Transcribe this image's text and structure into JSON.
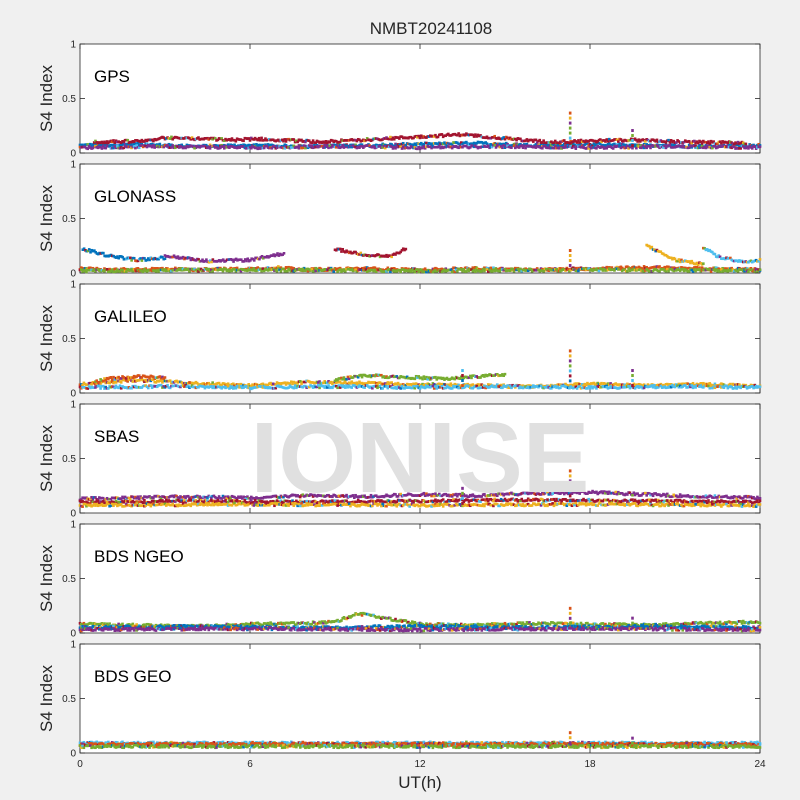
{
  "chart_data": {
    "type": "scatter",
    "title": "NMBT20241108",
    "xlabel": "UT(h)",
    "ylabel": "S4 Index",
    "xlim": [
      0,
      24
    ],
    "ylim": [
      0,
      1
    ],
    "x_ticks": [
      "0",
      "6",
      "12",
      "18",
      "24"
    ],
    "y_ticks": [
      "0",
      "0.5",
      "1"
    ],
    "watermark": "IONISE",
    "series_colors": [
      "#0072bd",
      "#d95319",
      "#edb120",
      "#7e2f8e",
      "#77ac30",
      "#4dbeee",
      "#a2142f"
    ],
    "panels": [
      {
        "label": "GPS",
        "tracks": [
          {
            "x": [
              0,
              2,
              4,
              6,
              8,
              10,
              12,
              14,
              16,
              18,
              20,
              22,
              24
            ],
            "y": [
              0.07,
              0.08,
              0.06,
              0.07,
              0.06,
              0.07,
              0.08,
              0.09,
              0.07,
              0.08,
              0.07,
              0.06,
              0.07
            ]
          },
          {
            "x": [
              0,
              3,
              6,
              9,
              12,
              15,
              18,
              21,
              24
            ],
            "y": [
              0.05,
              0.06,
              0.05,
              0.06,
              0.05,
              0.06,
              0.05,
              0.06,
              0.05
            ]
          },
          {
            "x": [
              0.5,
              2.5,
              2.8,
              5.5,
              6.2,
              8.5,
              13.5,
              16.5,
              19.5,
              21.5,
              23.5
            ],
            "y": [
              0.1,
              0.11,
              0.14,
              0.12,
              0.13,
              0.1,
              0.17,
              0.1,
              0.12,
              0.1,
              0.09
            ]
          }
        ],
        "spikes": [
          {
            "x": 17.3,
            "y": 0.38
          },
          {
            "x": 19.5,
            "y": 0.22
          }
        ]
      },
      {
        "label": "GLONASS",
        "tracks": [
          {
            "x": [
              0,
              1,
              2,
              3,
              4,
              6,
              7,
              8,
              10,
              12,
              14,
              16,
              18,
              20,
              22,
              24
            ],
            "y": [
              0.04,
              0.03,
              0.03,
              0.04,
              0.03,
              0.04,
              0.05,
              0.03,
              0.04,
              0.03,
              0.04,
              0.03,
              0.04,
              0.05,
              0.04,
              0.03
            ]
          },
          {
            "x": [
              0,
              6,
              12,
              18,
              24
            ],
            "y": [
              0.02,
              0.03,
              0.02,
              0.03,
              0.02
            ]
          }
        ],
        "arcs": [
          {
            "x": [
              0.1,
              1.0,
              2.0,
              3.0
            ],
            "y": [
              0.22,
              0.16,
              0.12,
              0.14
            ]
          },
          {
            "x": [
              3.0,
              4.5,
              6.0,
              7.2
            ],
            "y": [
              0.16,
              0.11,
              0.12,
              0.18
            ]
          },
          {
            "x": [
              9.0,
              10.0,
              11.0,
              11.5
            ],
            "y": [
              0.22,
              0.17,
              0.15,
              0.23
            ]
          },
          {
            "x": [
              20.0,
              21.0,
              22.0
            ],
            "y": [
              0.25,
              0.12,
              0.08
            ]
          },
          {
            "x": [
              22.0,
              22.5,
              23.5,
              24.0
            ],
            "y": [
              0.24,
              0.15,
              0.1,
              0.12
            ]
          }
        ],
        "spikes": [
          {
            "x": 17.3,
            "y": 0.22
          }
        ]
      },
      {
        "label": "GALILEO",
        "tracks": [
          {
            "x": [
              0,
              2,
              4,
              6,
              8,
              10,
              12,
              14,
              16,
              18,
              20,
              22,
              24
            ],
            "y": [
              0.08,
              0.12,
              0.09,
              0.07,
              0.1,
              0.09,
              0.08,
              0.07,
              0.06,
              0.08,
              0.07,
              0.08,
              0.06
            ]
          },
          {
            "x": [
              0,
              3,
              6,
              9,
              12,
              15,
              18,
              21,
              24
            ],
            "y": [
              0.05,
              0.06,
              0.05,
              0.06,
              0.05,
              0.06,
              0.05,
              0.06,
              0.05
            ]
          },
          {
            "x": [
              0.5,
              1.0,
              2.0,
              3.0
            ],
            "y": [
              0.1,
              0.13,
              0.15,
              0.14
            ]
          },
          {
            "x": [
              9.0,
              10.0,
              13.0,
              14.0,
              15.0
            ],
            "y": [
              0.12,
              0.16,
              0.13,
              0.15,
              0.17
            ]
          }
        ],
        "spikes": [
          {
            "x": 17.3,
            "y": 0.4
          },
          {
            "x": 19.5,
            "y": 0.22
          },
          {
            "x": 13.5,
            "y": 0.22
          }
        ]
      },
      {
        "label": "SBAS",
        "tracks": [
          {
            "x": [
              0,
              2,
              4,
              6,
              8,
              10,
              12,
              14,
              16,
              18,
              20,
              22,
              24
            ],
            "y": [
              0.13,
              0.14,
              0.15,
              0.14,
              0.16,
              0.15,
              0.17,
              0.16,
              0.18,
              0.19,
              0.17,
              0.15,
              0.14
            ]
          },
          {
            "x": [
              0,
              4,
              8,
              12,
              16,
              20,
              24
            ],
            "y": [
              0.1,
              0.11,
              0.1,
              0.11,
              0.12,
              0.11,
              0.1
            ]
          },
          {
            "x": [
              0,
              6,
              12,
              18,
              24
            ],
            "y": [
              0.07,
              0.08,
              0.07,
              0.08,
              0.07
            ]
          }
        ],
        "spikes": [
          {
            "x": 17.3,
            "y": 0.4
          },
          {
            "x": 13.5,
            "y": 0.24
          }
        ]
      },
      {
        "label": "BDS NGEO",
        "tracks": [
          {
            "x": [
              0,
              2,
              4,
              6,
              8,
              9,
              9.8,
              12,
              14,
              16,
              18,
              20,
              22,
              24
            ],
            "y": [
              0.08,
              0.07,
              0.06,
              0.08,
              0.09,
              0.1,
              0.18,
              0.08,
              0.07,
              0.09,
              0.08,
              0.07,
              0.09,
              0.1
            ]
          },
          {
            "x": [
              0,
              4,
              8,
              12,
              16,
              20,
              24
            ],
            "y": [
              0.05,
              0.06,
              0.05,
              0.06,
              0.05,
              0.06,
              0.05
            ]
          },
          {
            "x": [
              0,
              6,
              12,
              18,
              24
            ],
            "y": [
              0.03,
              0.04,
              0.03,
              0.04,
              0.03
            ]
          }
        ],
        "spikes": [
          {
            "x": 17.3,
            "y": 0.24
          },
          {
            "x": 19.5,
            "y": 0.15
          }
        ]
      },
      {
        "label": "BDS GEO",
        "tracks": [
          {
            "x": [
              0,
              4,
              8,
              12,
              16,
              20,
              24
            ],
            "y": [
              0.09,
              0.09,
              0.09,
              0.09,
              0.09,
              0.09,
              0.09
            ]
          },
          {
            "x": [
              0,
              4,
              8,
              12,
              16,
              20,
              24
            ],
            "y": [
              0.08,
              0.08,
              0.08,
              0.08,
              0.08,
              0.08,
              0.08
            ]
          },
          {
            "x": [
              0,
              4,
              8,
              12,
              16,
              20,
              24
            ],
            "y": [
              0.06,
              0.06,
              0.06,
              0.06,
              0.06,
              0.06,
              0.06
            ]
          }
        ],
        "spikes": [
          {
            "x": 17.3,
            "y": 0.2
          },
          {
            "x": 19.5,
            "y": 0.15
          }
        ]
      }
    ]
  }
}
